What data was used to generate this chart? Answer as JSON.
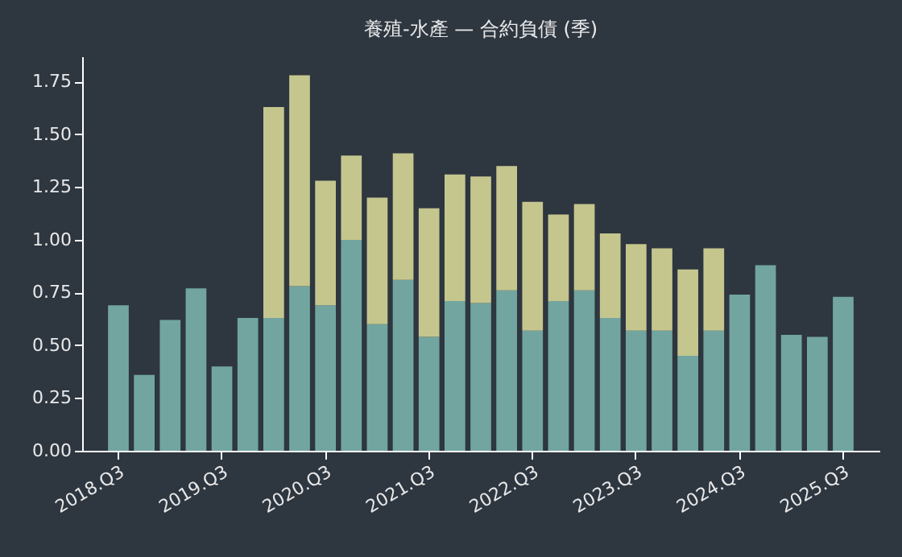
{
  "chart_data": {
    "type": "bar",
    "title": "養殖-水產 — 合約負債 (季)",
    "stacked": true,
    "grid": false,
    "legend": false,
    "categories": [
      "2018.Q3",
      null,
      null,
      null,
      "2019.Q3",
      null,
      null,
      null,
      "2020.Q3",
      null,
      null,
      null,
      "2021.Q3",
      null,
      null,
      null,
      "2022.Q3",
      null,
      null,
      null,
      "2023.Q3",
      null,
      null,
      null,
      "2024.Q3",
      null,
      null,
      null,
      "2025.Q3"
    ],
    "series": [
      {
        "color": "#72a5a0",
        "values": [
          0.69,
          0.36,
          0.62,
          0.77,
          0.4,
          0.63,
          0.63,
          0.78,
          0.69,
          1.0,
          0.6,
          0.81,
          0.54,
          0.71,
          0.7,
          0.76,
          0.57,
          0.71,
          0.76,
          0.63,
          0.57,
          0.57,
          0.45,
          0.57,
          0.74,
          0.88,
          0.55,
          0.54,
          0.73
        ]
      },
      {
        "color": "#c5c68e",
        "values": [
          null,
          null,
          null,
          null,
          null,
          null,
          1.0,
          1.0,
          0.59,
          0.4,
          0.6,
          0.6,
          0.61,
          0.6,
          0.6,
          0.59,
          0.61,
          0.41,
          0.41,
          0.4,
          0.41,
          0.39,
          0.41,
          0.39,
          null,
          null,
          null,
          null,
          null
        ]
      }
    ],
    "ylim": [
      0,
      1.87
    ],
    "yticks": [
      {
        "value": 0,
        "label": "0.00"
      },
      {
        "value": 0.25,
        "label": "0.25"
      },
      {
        "value": 0.5,
        "label": "0.50"
      },
      {
        "value": 0.75,
        "label": "0.75"
      },
      {
        "value": 1,
        "label": "1.00"
      },
      {
        "value": 1.25,
        "label": "1.25"
      },
      {
        "value": 1.5,
        "label": "1.50"
      },
      {
        "value": 1.75,
        "label": "1.75"
      }
    ]
  }
}
